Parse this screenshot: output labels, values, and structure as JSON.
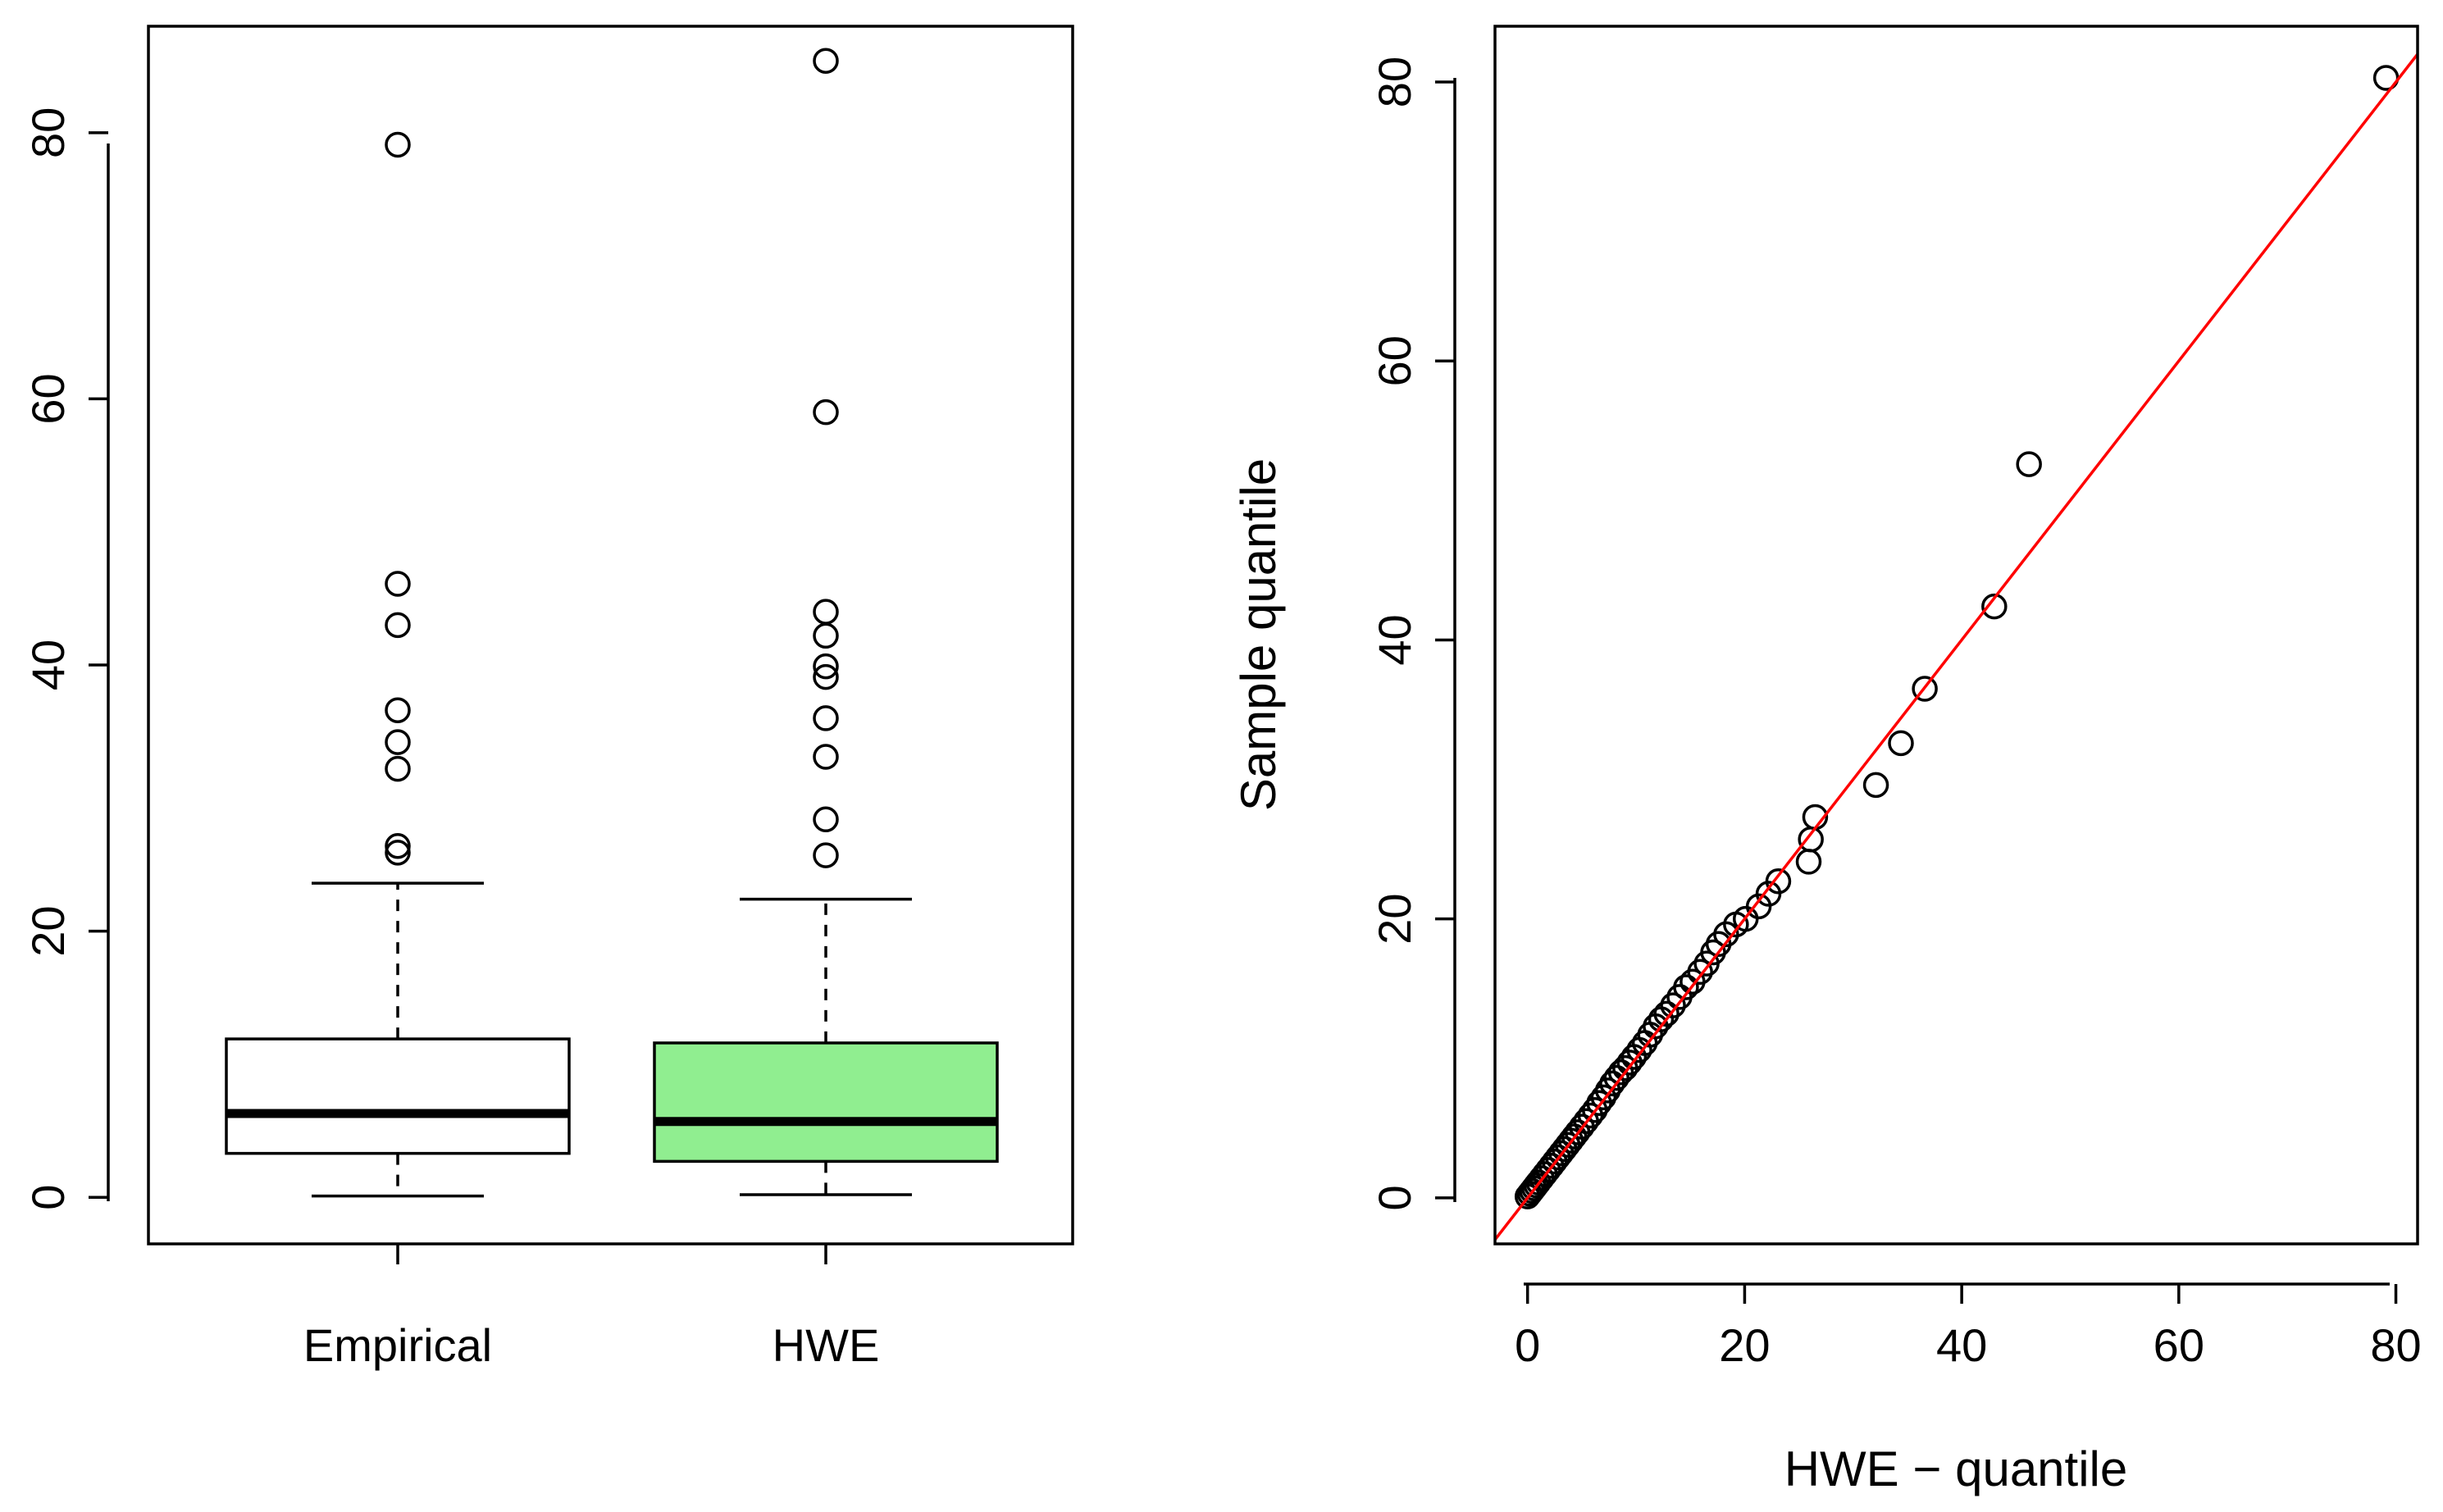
{
  "chart_data": [
    {
      "type": "boxplot",
      "title": "",
      "xlabel": "",
      "ylabel": "",
      "ylim": [
        -3.5,
        88
      ],
      "yticks": [
        0,
        20,
        40,
        60,
        80
      ],
      "ytick_labels": [
        "0",
        "20",
        "40",
        "60",
        "80"
      ],
      "categories": [
        "Empirical",
        "HWE"
      ],
      "boxes": [
        {
          "name": "Empirical",
          "fill": "#ffffff",
          "whisker_low": 0.1,
          "q1": 3.3,
          "median": 6.3,
          "q3": 11.9,
          "whisker_high": 23.6,
          "outliers": [
            79.1,
            46.1,
            43.0,
            36.6,
            34.2,
            32.2,
            26.4,
            25.9
          ]
        },
        {
          "name": "HWE",
          "fill": "#90ee90",
          "whisker_low": 0.2,
          "q1": 2.7,
          "median": 5.7,
          "q3": 11.6,
          "whisker_high": 22.4,
          "outliers": [
            85.4,
            59.0,
            44.0,
            42.2,
            39.9,
            39.1,
            36.0,
            33.1,
            28.4,
            25.7
          ]
        }
      ]
    },
    {
      "type": "scatter",
      "title": "",
      "xlabel": "HWE − quantile",
      "ylabel": "Sample quantile",
      "xlim": [
        -3,
        82
      ],
      "ylim": [
        -3.3,
        84
      ],
      "xticks": [
        0,
        20,
        40,
        60,
        80
      ],
      "xtick_labels": [
        "0",
        "20",
        "40",
        "60",
        "80"
      ],
      "yticks": [
        0,
        20,
        40,
        60,
        80
      ],
      "ytick_labels": [
        "0",
        "20",
        "40",
        "60",
        "80"
      ],
      "reference_line": {
        "slope": 1,
        "intercept": 0,
        "color": "#ff0000"
      },
      "points": [
        [
          0.0,
          0.1
        ],
        [
          0.2,
          0.3
        ],
        [
          0.4,
          0.5
        ],
        [
          0.6,
          0.7
        ],
        [
          0.8,
          0.9
        ],
        [
          1.0,
          1.1
        ],
        [
          1.3,
          1.4
        ],
        [
          1.6,
          1.7
        ],
        [
          1.9,
          2.0
        ],
        [
          2.2,
          2.3
        ],
        [
          2.5,
          2.6
        ],
        [
          2.8,
          2.9
        ],
        [
          3.1,
          3.2
        ],
        [
          3.4,
          3.5
        ],
        [
          3.7,
          3.8
        ],
        [
          4.0,
          4.1
        ],
        [
          4.3,
          4.4
        ],
        [
          4.6,
          4.7
        ],
        [
          5.0,
          5.1
        ],
        [
          5.4,
          5.5
        ],
        [
          5.8,
          5.9
        ],
        [
          6.2,
          6.3
        ],
        [
          6.6,
          6.8
        ],
        [
          7.0,
          7.2
        ],
        [
          7.4,
          7.7
        ],
        [
          7.8,
          8.2
        ],
        [
          8.2,
          8.6
        ],
        [
          8.6,
          9.0
        ],
        [
          9.0,
          9.3
        ],
        [
          9.4,
          9.7
        ],
        [
          9.8,
          10.1
        ],
        [
          10.3,
          10.6
        ],
        [
          10.8,
          11.1
        ],
        [
          11.3,
          11.7
        ],
        [
          11.8,
          12.3
        ],
        [
          12.3,
          12.8
        ],
        [
          12.8,
          13.2
        ],
        [
          13.4,
          13.8
        ],
        [
          14.0,
          14.4
        ],
        [
          14.6,
          15.1
        ],
        [
          15.2,
          15.5
        ],
        [
          15.9,
          16.2
        ],
        [
          16.5,
          16.8
        ],
        [
          17.1,
          17.6
        ],
        [
          17.6,
          18.2
        ],
        [
          18.3,
          18.9
        ],
        [
          19.2,
          19.6
        ],
        [
          20.1,
          20.0
        ],
        [
          21.3,
          20.9
        ],
        [
          22.2,
          21.8
        ],
        [
          23.1,
          22.7
        ],
        [
          25.9,
          24.1
        ],
        [
          26.1,
          25.7
        ],
        [
          26.5,
          27.3
        ],
        [
          32.1,
          29.6
        ],
        [
          34.4,
          32.6
        ],
        [
          36.6,
          36.5
        ],
        [
          43.0,
          42.4
        ],
        [
          46.2,
          52.6
        ],
        [
          79.1,
          80.3
        ]
      ]
    }
  ]
}
